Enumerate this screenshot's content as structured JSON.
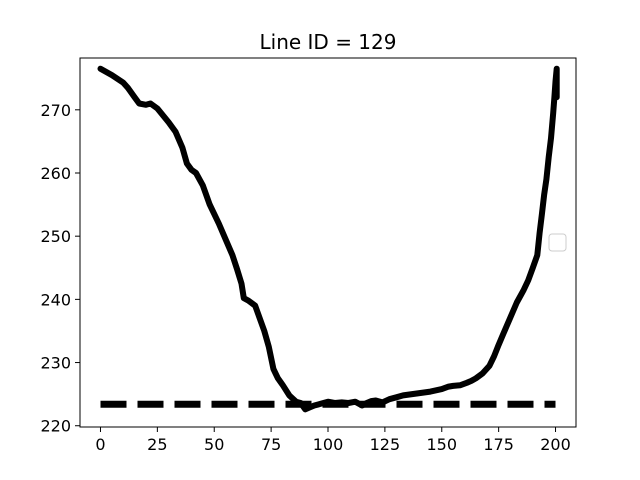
{
  "chart_data": {
    "type": "line",
    "title": "Line ID = 129",
    "xlabel": "",
    "ylabel": "",
    "xlim": [
      -9,
      209
    ],
    "ylim": [
      219.8,
      278.2
    ],
    "x_ticks": [
      0,
      25,
      50,
      75,
      100,
      125,
      150,
      175,
      200
    ],
    "y_ticks": [
      220,
      230,
      240,
      250,
      260,
      270
    ],
    "x_tick_labels": [
      "0",
      "25",
      "50",
      "75",
      "100",
      "125",
      "150",
      "175",
      "200"
    ],
    "y_tick_labels": [
      "220",
      "230",
      "240",
      "250",
      "260",
      "270"
    ],
    "grid": false,
    "legend": {
      "placement": "center-right",
      "entries": []
    },
    "series": [
      {
        "style": "solid",
        "color": "#000000",
        "x": [
          0,
          5,
          10,
          12,
          15,
          17,
          20,
          22,
          25,
          30,
          33,
          36,
          38,
          40,
          42,
          45,
          48,
          52,
          55,
          58,
          60,
          62,
          63,
          65,
          68,
          70,
          72,
          74,
          76,
          78,
          80,
          83,
          86,
          88,
          90,
          92,
          94,
          96,
          98,
          100,
          103,
          106,
          109,
          112,
          115,
          117,
          119,
          121,
          124,
          127,
          130,
          133,
          137,
          141,
          145,
          150,
          153,
          155,
          158,
          161,
          163,
          165,
          168,
          171,
          173,
          175,
          177,
          180,
          183,
          186,
          188,
          190,
          192,
          193,
          194,
          195,
          196,
          197,
          198,
          199,
          199.5,
          200,
          200.5,
          200.5
        ],
        "y": [
          276.5,
          275.5,
          274.3,
          273.5,
          272,
          271,
          270.8,
          271,
          270.2,
          268,
          266.5,
          264,
          261.5,
          260.5,
          260,
          258,
          255,
          252,
          249.5,
          247,
          244.8,
          242.5,
          240.2,
          239.8,
          239,
          237,
          235,
          232.5,
          229,
          227.5,
          226.5,
          224.8,
          223.8,
          223.6,
          222.6,
          222.9,
          223.2,
          223.4,
          223.6,
          223.8,
          223.6,
          223.7,
          223.6,
          223.8,
          223.2,
          223.6,
          223.9,
          224,
          223.7,
          224.2,
          224.5,
          224.8,
          225,
          225.2,
          225.4,
          225.8,
          226.2,
          226.3,
          226.4,
          226.8,
          227.1,
          227.5,
          228.3,
          229.5,
          231,
          232.8,
          234.5,
          237,
          239.5,
          241.5,
          243,
          245,
          247,
          250.5,
          253.5,
          256.5,
          259,
          262.5,
          265.5,
          269.5,
          272,
          274.5,
          276.5,
          272
        ]
      },
      {
        "style": "dashed",
        "color": "#000000",
        "x": [
          0,
          200
        ],
        "y": [
          223.4,
          223.4
        ]
      }
    ]
  }
}
